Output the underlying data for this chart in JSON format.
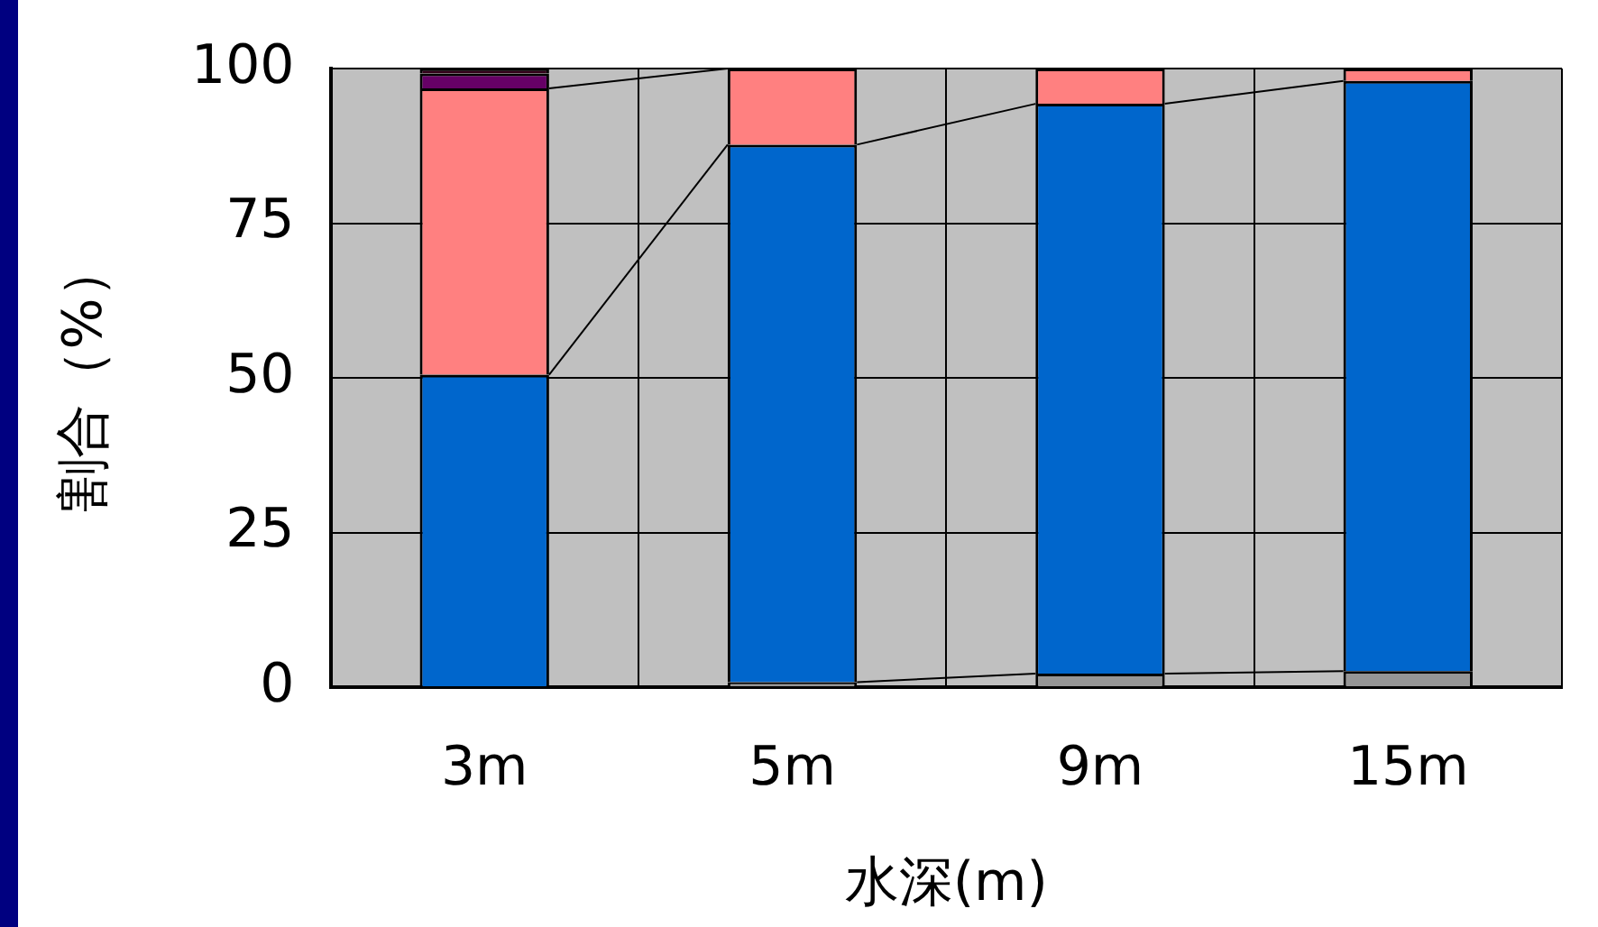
{
  "chart_data": {
    "type": "bar",
    "stacked": true,
    "xlabel": "水深(m)",
    "ylabel": "割合（%）",
    "categories": [
      "3m",
      "5m",
      "9m",
      "15m"
    ],
    "ylim": [
      0,
      100
    ],
    "yticks": [
      0,
      25,
      50,
      75,
      100
    ],
    "grid": true,
    "legend": false,
    "series": [
      {
        "color": "#969696",
        "values": [
          0,
          0.8,
          2.2,
          2.6
        ]
      },
      {
        "color": "#0066cc",
        "values": [
          50.5,
          86.9,
          92.1,
          95.4
        ]
      },
      {
        "color": "#ff8080",
        "values": [
          46.3,
          12.3,
          5.7,
          2.0
        ]
      },
      {
        "color": "#660066",
        "values": [
          2.4,
          0,
          0,
          0
        ]
      },
      {
        "color": "#33001a",
        "values": [
          0.8,
          0,
          0,
          0
        ]
      }
    ]
  }
}
